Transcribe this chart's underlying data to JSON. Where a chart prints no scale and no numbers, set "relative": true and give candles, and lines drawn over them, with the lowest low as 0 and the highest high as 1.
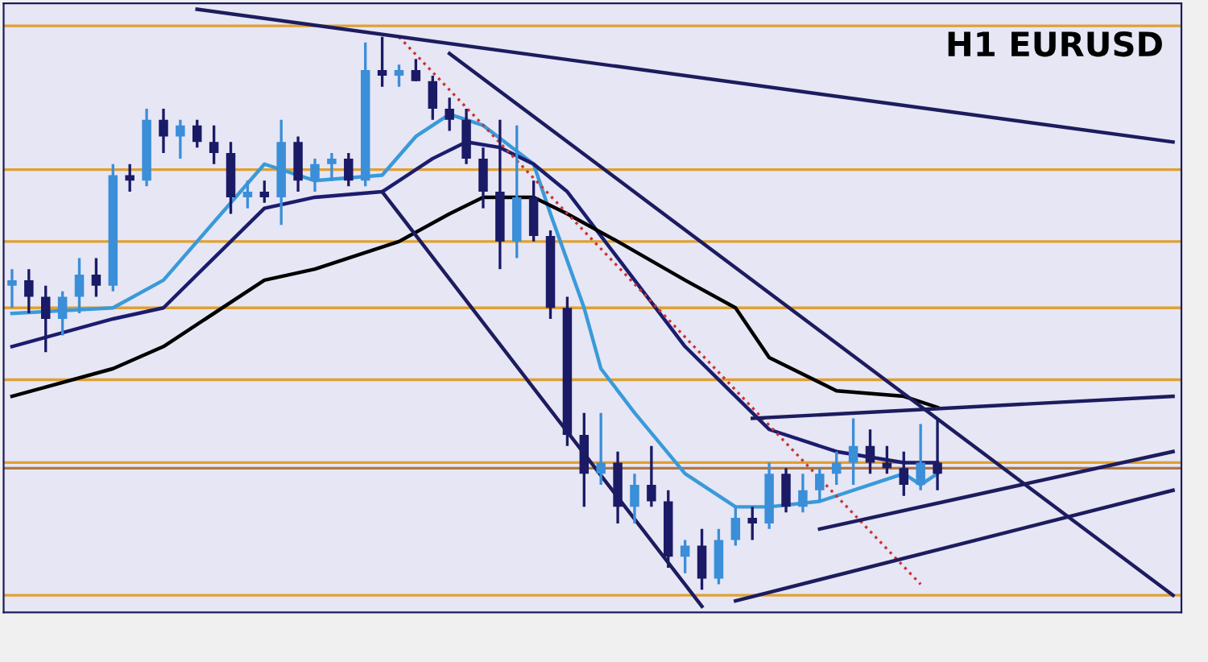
{
  "chart_data": {
    "type": "candlestick",
    "relative": true,
    "title": "H1 EURUSD",
    "categories": [
      null,
      null,
      null,
      null,
      null,
      null,
      null,
      null,
      null,
      null,
      null,
      null,
      null,
      null,
      null,
      null,
      null,
      null,
      null,
      null,
      null,
      null,
      null,
      null,
      null,
      null,
      null,
      null,
      null,
      null,
      null,
      null,
      null,
      null,
      null,
      null,
      null,
      null,
      null,
      null,
      null,
      null,
      null,
      null,
      null,
      null,
      null,
      null,
      null,
      null,
      null,
      null,
      null,
      null,
      null,
      null,
      null,
      null,
      null,
      null,
      null,
      null,
      null,
      null,
      null,
      null,
      null,
      null,
      null,
      null
    ],
    "ohlc": [
      [
        0.55,
        0.58,
        0.51,
        0.56
      ],
      [
        0.56,
        0.58,
        0.5,
        0.53
      ],
      [
        0.53,
        0.55,
        0.43,
        0.49
      ],
      [
        0.49,
        0.54,
        0.46,
        0.53
      ],
      [
        0.53,
        0.6,
        0.5,
        0.57
      ],
      [
        0.57,
        0.6,
        0.53,
        0.55
      ],
      [
        0.55,
        0.77,
        0.54,
        0.75
      ],
      [
        0.75,
        0.77,
        0.72,
        0.74
      ],
      [
        0.74,
        0.87,
        0.73,
        0.85
      ],
      [
        0.85,
        0.87,
        0.79,
        0.82
      ],
      [
        0.82,
        0.85,
        0.78,
        0.84
      ],
      [
        0.84,
        0.85,
        0.8,
        0.81
      ],
      [
        0.81,
        0.84,
        0.77,
        0.79
      ],
      [
        0.79,
        0.81,
        0.68,
        0.71
      ],
      [
        0.71,
        0.74,
        0.69,
        0.72
      ],
      [
        0.72,
        0.74,
        0.7,
        0.71
      ],
      [
        0.71,
        0.85,
        0.66,
        0.81
      ],
      [
        0.81,
        0.82,
        0.72,
        0.74
      ],
      [
        0.74,
        0.78,
        0.72,
        0.77
      ],
      [
        0.77,
        0.79,
        0.74,
        0.78
      ],
      [
        0.78,
        0.79,
        0.73,
        0.74
      ],
      [
        0.74,
        0.99,
        0.73,
        0.94
      ],
      [
        0.94,
        1.0,
        0.91,
        0.93
      ],
      [
        0.93,
        0.95,
        0.91,
        0.94
      ],
      [
        0.94,
        0.96,
        0.92,
        0.92
      ],
      [
        0.92,
        0.93,
        0.85,
        0.87
      ],
      [
        0.87,
        0.89,
        0.83,
        0.85
      ],
      [
        0.85,
        0.87,
        0.77,
        0.78
      ],
      [
        0.78,
        0.8,
        0.69,
        0.72
      ],
      [
        0.72,
        0.85,
        0.58,
        0.63
      ],
      [
        0.63,
        0.84,
        0.6,
        0.71
      ],
      [
        0.71,
        0.74,
        0.63,
        0.64
      ],
      [
        0.64,
        0.65,
        0.49,
        0.51
      ],
      [
        0.51,
        0.53,
        0.26,
        0.28
      ],
      [
        0.28,
        0.32,
        0.15,
        0.21
      ],
      [
        0.21,
        0.32,
        0.19,
        0.23
      ],
      [
        0.23,
        0.25,
        0.12,
        0.15
      ],
      [
        0.15,
        0.21,
        0.12,
        0.19
      ],
      [
        0.19,
        0.26,
        0.15,
        0.16
      ],
      [
        0.16,
        0.18,
        0.04,
        0.06
      ],
      [
        0.06,
        0.09,
        0.03,
        0.08
      ],
      [
        0.08,
        0.11,
        0.0,
        0.02
      ],
      [
        0.02,
        0.11,
        0.01,
        0.09
      ],
      [
        0.09,
        0.15,
        0.08,
        0.13
      ],
      [
        0.13,
        0.15,
        0.09,
        0.12
      ],
      [
        0.12,
        0.23,
        0.11,
        0.21
      ],
      [
        0.21,
        0.22,
        0.14,
        0.15
      ],
      [
        0.15,
        0.21,
        0.14,
        0.18
      ],
      [
        0.18,
        0.22,
        0.16,
        0.21
      ],
      [
        0.21,
        0.25,
        0.19,
        0.23
      ],
      [
        0.23,
        0.31,
        0.19,
        0.26
      ],
      [
        0.26,
        0.29,
        0.21,
        0.23
      ],
      [
        0.23,
        0.26,
        0.21,
        0.22
      ],
      [
        0.22,
        0.25,
        0.17,
        0.19
      ],
      [
        0.19,
        0.3,
        0.18,
        0.23
      ],
      [
        0.23,
        0.31,
        0.18,
        0.21
      ],
      null,
      null,
      null,
      null,
      null,
      null,
      null,
      null,
      null,
      null,
      null,
      null,
      null,
      null
    ],
    "colors": [
      "#3b8ed8",
      "#1a1a66",
      "#1a1a66",
      "#3b8ed8",
      "#3b8ed8",
      "#1a1a66",
      "#3b8ed8",
      "#1a1a66",
      "#3b8ed8",
      "#1a1a66",
      "#3b8ed8",
      "#1a1a66",
      "#1a1a66",
      "#1a1a66",
      "#3b8ed8",
      "#1a1a66",
      "#3b8ed8",
      "#1a1a66",
      "#3b8ed8",
      "#3b8ed8",
      "#1a1a66",
      "#3b8ed8",
      "#1a1a66",
      "#3b8ed8",
      "#1a1a66",
      "#1a1a66",
      "#1a1a66",
      "#1a1a66",
      "#1a1a66",
      "#1a1a66",
      "#3b8ed8",
      "#1a1a66",
      "#1a1a66",
      "#1a1a66",
      "#1a1a66",
      "#3b8ed8",
      "#1a1a66",
      "#3b8ed8",
      "#1a1a66",
      "#1a1a66",
      "#3b8ed8",
      "#1a1a66",
      "#3b8ed8",
      "#3b8ed8",
      "#1a1a66",
      "#3b8ed8",
      "#1a1a66",
      "#3b8ed8",
      "#3b8ed8",
      "#3b8ed8",
      "#3b8ed8",
      "#1a1a66",
      "#1a1a66",
      "#1a1a66",
      "#3b8ed8",
      "#1a1a66",
      null,
      null,
      null,
      null,
      null,
      null,
      null,
      null,
      null,
      null,
      null,
      null,
      null,
      null
    ],
    "series": [
      {
        "type": "line",
        "color": "#3a9ad9",
        "line_style": "solid",
        "values": [
          0.5,
          null,
          null,
          null,
          null,
          null,
          0.51,
          null,
          null,
          0.56,
          null,
          null,
          null,
          null,
          null,
          0.77,
          null,
          null,
          0.74,
          null,
          null,
          null,
          0.75,
          null,
          0.82,
          null,
          0.86,
          null,
          0.84,
          null,
          null,
          0.77,
          0.68,
          null,
          0.51,
          0.4,
          null,
          0.32,
          null,
          null,
          0.21,
          null,
          null,
          0.15,
          null,
          0.15,
          null,
          null,
          0.16,
          null,
          null,
          0.19,
          null,
          0.21,
          0.19,
          0.21,
          null,
          null,
          null,
          null,
          null,
          null,
          null,
          null,
          null,
          null,
          null,
          null,
          null,
          null
        ]
      },
      {
        "type": "line",
        "color": "#1c1c6e",
        "line_style": "solid",
        "values": [
          0.44,
          null,
          null,
          null,
          null,
          null,
          0.49,
          null,
          null,
          0.51,
          null,
          null,
          null,
          null,
          null,
          0.69,
          null,
          null,
          0.71,
          null,
          null,
          null,
          0.72,
          null,
          null,
          0.78,
          null,
          0.81,
          null,
          0.8,
          null,
          0.77,
          null,
          0.72,
          null,
          null,
          0.6,
          null,
          null,
          null,
          0.44,
          null,
          null,
          0.35,
          null,
          0.29,
          null,
          null,
          null,
          0.25,
          null,
          null,
          null,
          0.23,
          null,
          0.23,
          null,
          null,
          null,
          null,
          null,
          null,
          null,
          null,
          null,
          null,
          null,
          null,
          null,
          null
        ]
      },
      {
        "type": "line",
        "color": "#000000",
        "line_style": "solid",
        "values": [
          0.35,
          null,
          null,
          null,
          null,
          null,
          0.4,
          null,
          null,
          0.44,
          null,
          null,
          null,
          null,
          null,
          0.56,
          null,
          null,
          0.58,
          null,
          null,
          null,
          null,
          0.63,
          null,
          null,
          0.68,
          null,
          0.71,
          null,
          null,
          0.71,
          null,
          0.68,
          null,
          null,
          0.63,
          null,
          null,
          null,
          0.56,
          null,
          null,
          0.51,
          null,
          0.42,
          null,
          null,
          null,
          0.36,
          null,
          null,
          null,
          0.35,
          null,
          0.33,
          null,
          null,
          null,
          null,
          null,
          null,
          null,
          null,
          null,
          null,
          null,
          null,
          null,
          null
        ]
      },
      {
        "type": "line",
        "color": "#cc3333",
        "line_style": "dotted",
        "values": [
          null,
          null,
          null,
          null,
          null,
          null,
          null,
          null,
          null,
          null,
          null,
          null,
          null,
          null,
          null,
          null,
          null,
          null,
          null,
          null,
          null,
          null,
          null,
          1.0,
          null,
          null,
          null,
          null,
          null,
          null,
          null,
          null,
          null,
          null,
          null,
          null,
          null,
          null,
          null,
          null,
          null,
          null,
          null,
          null,
          null,
          null,
          null,
          null,
          null,
          null,
          null,
          null,
          null,
          null,
          0.01,
          null,
          null,
          null,
          null,
          null,
          null,
          null,
          null,
          null,
          null,
          null,
          null,
          null,
          null,
          null
        ]
      },
      {
        "type": "line",
        "color": "#1c1c5e",
        "line_style": "solid",
        "values": [
          null,
          null,
          null,
          null,
          null,
          null,
          null,
          null,
          null,
          null,
          null,
          1.05,
          null,
          null,
          null,
          null,
          null,
          null,
          null,
          null,
          null,
          null,
          null,
          null,
          null,
          null,
          null,
          null,
          null,
          null,
          null,
          null,
          null,
          null,
          null,
          null,
          null,
          null,
          null,
          null,
          null,
          null,
          null,
          null,
          null,
          null,
          null,
          null,
          null,
          null,
          null,
          null,
          null,
          null,
          null,
          null,
          null,
          null,
          null,
          null,
          null,
          null,
          null,
          null,
          null,
          null,
          null,
          null,
          null,
          0.81
        ]
      },
      {
        "type": "line",
        "color": "#1c1c5e",
        "line_style": "solid",
        "values": [
          null,
          null,
          null,
          null,
          null,
          null,
          null,
          null,
          null,
          null,
          null,
          null,
          null,
          null,
          null,
          null,
          null,
          null,
          null,
          null,
          null,
          null,
          0.72,
          null,
          null,
          null,
          null,
          null,
          null,
          null,
          null,
          null,
          null,
          null,
          null,
          null,
          null,
          null,
          null,
          null,
          null,
          -0.03,
          null,
          null,
          null,
          null,
          null,
          null,
          null,
          null,
          null,
          null,
          null,
          null,
          null,
          null,
          null,
          null,
          null,
          null,
          null,
          null,
          null,
          null,
          null,
          null,
          null,
          null,
          null,
          null
        ]
      },
      {
        "type": "line",
        "color": "#1c1c5e",
        "line_style": "solid",
        "values": [
          null,
          null,
          null,
          null,
          null,
          null,
          null,
          null,
          null,
          null,
          null,
          null,
          null,
          null,
          null,
          null,
          null,
          null,
          null,
          null,
          null,
          null,
          null,
          null,
          null,
          null,
          0.97,
          null,
          null,
          null,
          null,
          null,
          null,
          null,
          null,
          null,
          null,
          null,
          null,
          null,
          null,
          null,
          null,
          null,
          null,
          null,
          null,
          null,
          null,
          null,
          null,
          null,
          null,
          null,
          null,
          null,
          null,
          null,
          null,
          null,
          null,
          null,
          null,
          null,
          null,
          null,
          null,
          null,
          null,
          -0.01
        ]
      },
      {
        "type": "line",
        "color": "#1c1c5e",
        "line_style": "solid",
        "values": [
          null,
          null,
          null,
          null,
          null,
          null,
          null,
          null,
          null,
          null,
          null,
          null,
          null,
          null,
          null,
          null,
          null,
          null,
          null,
          null,
          null,
          null,
          null,
          null,
          null,
          null,
          null,
          null,
          null,
          null,
          null,
          null,
          null,
          null,
          null,
          null,
          null,
          null,
          null,
          null,
          null,
          null,
          null,
          null,
          0.31,
          null,
          null,
          null,
          null,
          null,
          null,
          null,
          null,
          null,
          null,
          null,
          null,
          null,
          null,
          null,
          null,
          null,
          null,
          null,
          null,
          null,
          null,
          null,
          null,
          0.35
        ]
      },
      {
        "type": "line",
        "color": "#1c1c5e",
        "line_style": "solid",
        "values": [
          null,
          null,
          null,
          null,
          null,
          null,
          null,
          null,
          null,
          null,
          null,
          null,
          null,
          null,
          null,
          null,
          null,
          null,
          null,
          null,
          null,
          null,
          null,
          null,
          null,
          null,
          null,
          null,
          null,
          null,
          null,
          null,
          null,
          null,
          null,
          null,
          null,
          null,
          null,
          null,
          null,
          null,
          null,
          null,
          null,
          null,
          null,
          null,
          0.11,
          null,
          null,
          null,
          null,
          null,
          null,
          null,
          null,
          null,
          null,
          null,
          null,
          null,
          null,
          null,
          null,
          null,
          null,
          null,
          null,
          0.25
        ]
      },
      {
        "type": "line",
        "color": "#1c1c5e",
        "line_style": "solid",
        "values": [
          null,
          null,
          null,
          null,
          null,
          null,
          null,
          null,
          null,
          null,
          null,
          null,
          null,
          null,
          null,
          null,
          null,
          null,
          null,
          null,
          null,
          null,
          null,
          null,
          null,
          null,
          null,
          null,
          null,
          null,
          null,
          null,
          null,
          null,
          null,
          null,
          null,
          null,
          null,
          null,
          null,
          null,
          null,
          -0.02,
          null,
          null,
          null,
          null,
          null,
          null,
          null,
          null,
          null,
          null,
          null,
          null,
          null,
          null,
          null,
          null,
          null,
          null,
          null,
          null,
          null,
          null,
          null,
          null,
          null,
          0.18
        ]
      }
    ],
    "ref_lines": [
      {
        "axis": "y",
        "value": 1.02,
        "color": "#e0a030"
      },
      {
        "axis": "y",
        "value": 0.76,
        "color": "#e0a030"
      },
      {
        "axis": "y",
        "value": 0.63,
        "color": "#e0a030"
      },
      {
        "axis": "y",
        "value": 0.51,
        "color": "#e0a030"
      },
      {
        "axis": "y",
        "value": 0.38,
        "color": "#e0a030"
      },
      {
        "axis": "y",
        "value": 0.23,
        "color": "#e0a030"
      },
      {
        "axis": "y",
        "value": 0.22,
        "color": "#b07840"
      },
      {
        "axis": "y",
        "value": -0.01,
        "color": "#e0a030"
      }
    ]
  }
}
